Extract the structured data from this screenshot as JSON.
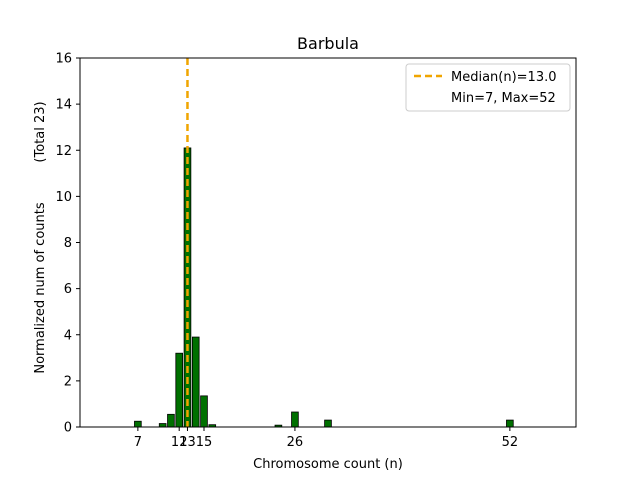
{
  "chart_data": {
    "type": "bar",
    "title": "Barbula",
    "xlabel": "Chromosome count (n)",
    "ylabel": "Normalized num of counts",
    "ylabel_note": "(Total 23)",
    "xlim": [
      0,
      60
    ],
    "ylim": [
      0,
      16
    ],
    "xticks": [
      7,
      12,
      13,
      15,
      26,
      52
    ],
    "yticks": [
      0,
      2,
      4,
      6,
      8,
      10,
      12,
      14,
      16
    ],
    "bar_color": "#007000",
    "bars": [
      {
        "x": 7,
        "value": 0.25
      },
      {
        "x": 10,
        "value": 0.15
      },
      {
        "x": 11,
        "value": 0.55
      },
      {
        "x": 12,
        "value": 3.2
      },
      {
        "x": 13,
        "value": 12.1
      },
      {
        "x": 14,
        "value": 3.9
      },
      {
        "x": 15,
        "value": 1.35
      },
      {
        "x": 16,
        "value": 0.1
      },
      {
        "x": 24,
        "value": 0.08
      },
      {
        "x": 26,
        "value": 0.65
      },
      {
        "x": 30,
        "value": 0.3
      },
      {
        "x": 52,
        "value": 0.3
      }
    ],
    "median_line": {
      "x": 13.0,
      "color": "#f0a500",
      "style": "dashed"
    },
    "legend": {
      "position": "top-right",
      "entries": [
        "Median(n)=13.0",
        "Min=7, Max=52"
      ]
    }
  }
}
